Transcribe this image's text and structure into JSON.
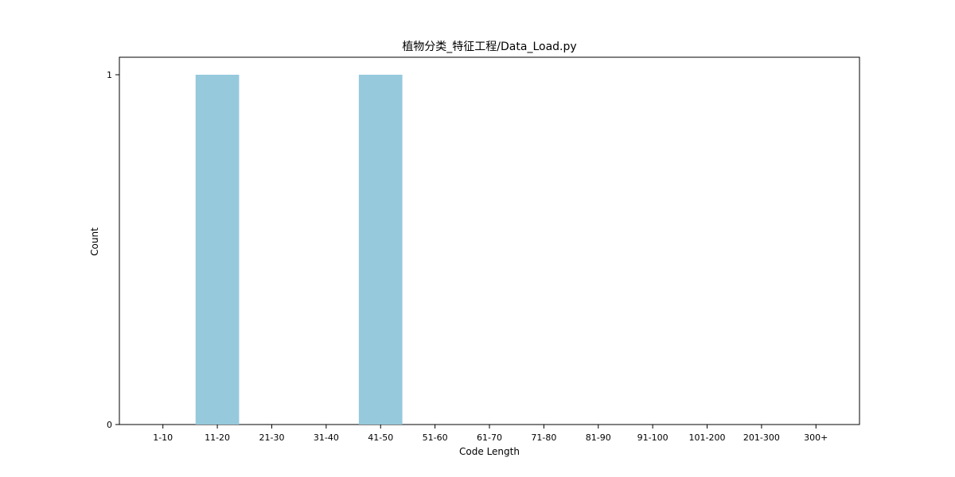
{
  "chart_data": {
    "type": "bar",
    "title": "植物分类_特征工程/Data_Load.py",
    "xlabel": "Code Length",
    "ylabel": "Count",
    "categories": [
      "1-10",
      "11-20",
      "21-30",
      "31-40",
      "41-50",
      "51-60",
      "61-70",
      "71-80",
      "81-90",
      "91-100",
      "101-200",
      "201-300",
      "300+"
    ],
    "values": [
      0,
      1,
      0,
      0,
      1,
      0,
      0,
      0,
      0,
      0,
      0,
      0,
      0
    ],
    "ylim": [
      0,
      1.05
    ],
    "yticks": [
      0,
      1
    ],
    "grid": false,
    "bar_color": "#96c9dc"
  }
}
